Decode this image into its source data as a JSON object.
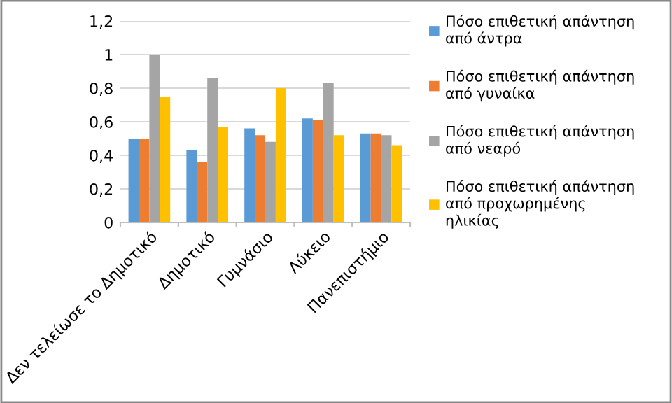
{
  "chart_data": {
    "type": "bar",
    "categories": [
      "Δεν τελείωσε το Δημοτικό",
      "Δημοτικό",
      "Γυμνάσιο",
      "Λύκειο",
      "Πανεπιστήμιο"
    ],
    "series": [
      {
        "name": "Πόσο επιθετική απάντηση\nαπό άντρα",
        "color": "#5b9bd5",
        "values": [
          0.5,
          0.43,
          0.56,
          0.62,
          0.53
        ]
      },
      {
        "name": "Πόσο επιθετική απάντηση\nαπό γυναίκα",
        "color": "#ed7d31",
        "values": [
          0.5,
          0.36,
          0.52,
          0.61,
          0.53
        ]
      },
      {
        "name": "Πόσο επιθετική απάντηση\nαπό νεαρό",
        "color": "#a5a5a5",
        "values": [
          1.0,
          0.86,
          0.48,
          0.83,
          0.52
        ]
      },
      {
        "name": "Πόσο επιθετική απάντηση\nαπό προχωρημένης\nηλικίας",
        "color": "#ffc000",
        "values": [
          0.75,
          0.57,
          0.8,
          0.52,
          0.46
        ]
      }
    ],
    "ylim": [
      0,
      1.2
    ],
    "yticks": [
      0,
      {
        "value": 0.2,
        "label": "0,2"
      },
      {
        "value": 0.4,
        "label": "0,4"
      },
      {
        "value": 0.6,
        "label": "0,6"
      },
      {
        "value": 0.8,
        "label": "0,8"
      },
      1,
      {
        "value": 1.2,
        "label": "1,2"
      }
    ],
    "grid": "y",
    "legend": "right"
  }
}
